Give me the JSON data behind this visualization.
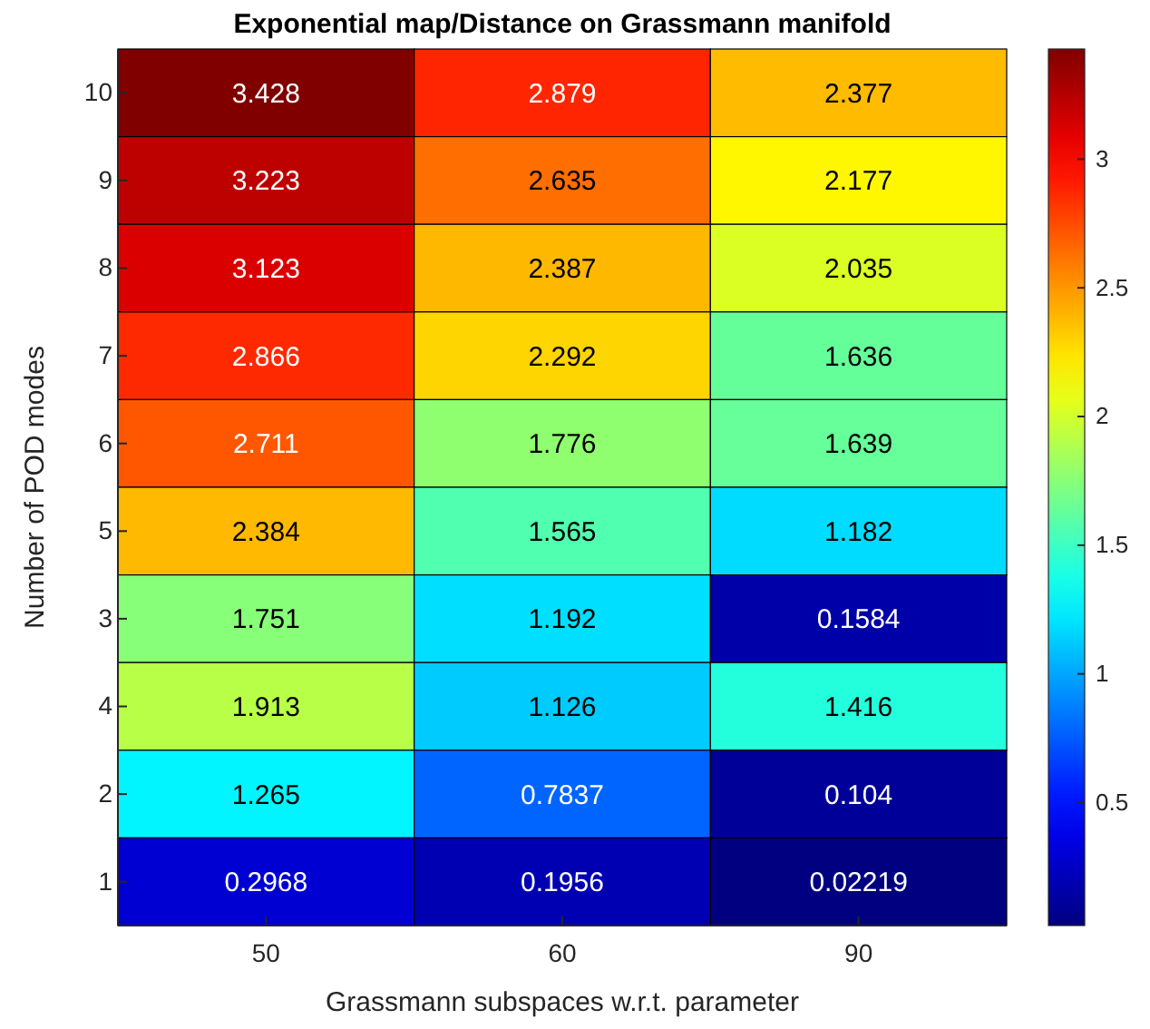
{
  "chart_data": {
    "type": "heatmap",
    "title": "Exponential map/Distance on Grassmann manifold",
    "xlabel": "Grassmann subspaces w.r.t. parameter",
    "ylabel": "Number of POD modes",
    "categories": [
      "50",
      "60",
      "90"
    ],
    "y_categories": [
      "10",
      "9",
      "8",
      "7",
      "6",
      "5",
      "3",
      "4",
      "2",
      "1"
    ],
    "cells": [
      [
        3.428,
        2.879,
        2.377
      ],
      [
        3.223,
        2.635,
        2.177
      ],
      [
        3.123,
        2.387,
        2.035
      ],
      [
        2.866,
        2.292,
        1.636
      ],
      [
        2.711,
        1.776,
        1.639
      ],
      [
        2.384,
        1.565,
        1.182
      ],
      [
        1.751,
        1.192,
        0.1584
      ],
      [
        1.913,
        1.126,
        1.416
      ],
      [
        1.265,
        0.7837,
        0.104
      ],
      [
        0.2968,
        0.1956,
        0.02219
      ]
    ],
    "data_labels": true,
    "clim": [
      0.02219,
      3.428
    ],
    "cticks": [
      0.5,
      1,
      1.5,
      2,
      2.5,
      3
    ]
  }
}
